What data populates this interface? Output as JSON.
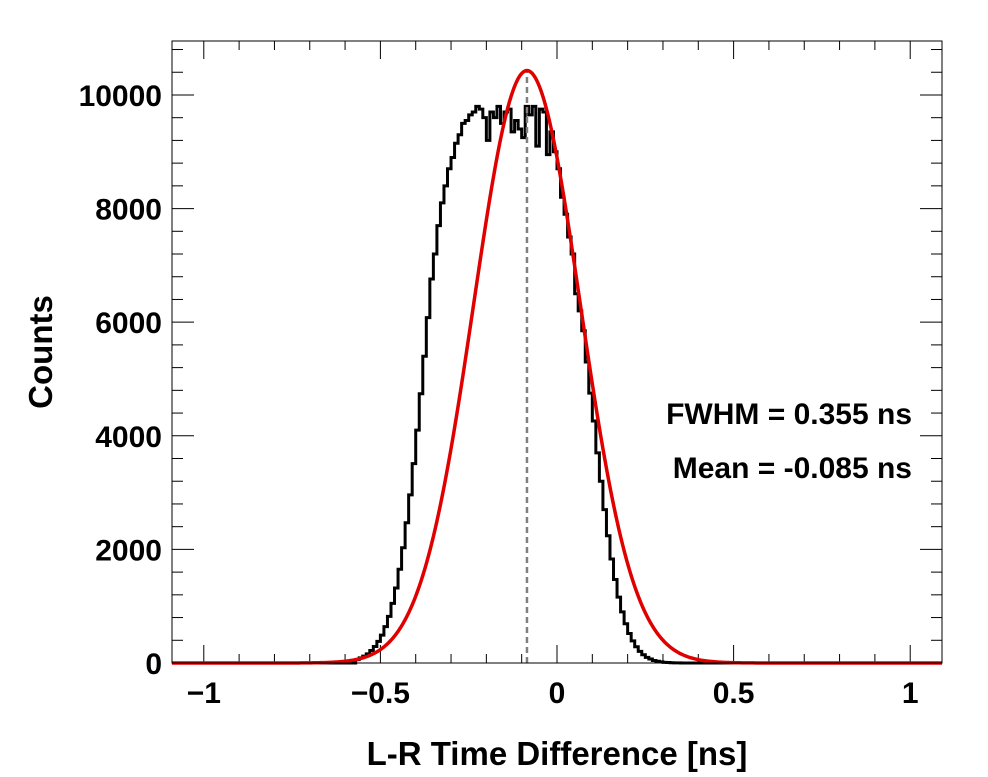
{
  "chart_data": {
    "type": "histogram",
    "xlabel": "L-R Time Difference [ns]",
    "ylabel": "Counts",
    "xlim": [
      -1.09,
      1.09
    ],
    "ylim": [
      0,
      10950
    ],
    "xticks": [
      -1,
      -0.5,
      0,
      0.5,
      1
    ],
    "xtick_labels": [
      "−1",
      "−0.5",
      "0",
      "0.5",
      "1"
    ],
    "yticks": [
      0,
      2000,
      4000,
      6000,
      8000,
      10000
    ],
    "ytick_labels": [
      "0",
      "2000",
      "4000",
      "6000",
      "8000",
      "10000"
    ],
    "histogram": {
      "bin_width": 0.01,
      "bin_centers": [
        -0.565,
        -0.555,
        -0.545,
        -0.535,
        -0.525,
        -0.515,
        -0.505,
        -0.495,
        -0.485,
        -0.475,
        -0.465,
        -0.455,
        -0.445,
        -0.435,
        -0.425,
        -0.415,
        -0.405,
        -0.395,
        -0.385,
        -0.375,
        -0.365,
        -0.355,
        -0.345,
        -0.335,
        -0.325,
        -0.315,
        -0.305,
        -0.295,
        -0.285,
        -0.275,
        -0.265,
        -0.255,
        -0.245,
        -0.235,
        -0.225,
        -0.215,
        -0.205,
        -0.195,
        -0.185,
        -0.175,
        -0.165,
        -0.155,
        -0.145,
        -0.135,
        -0.125,
        -0.115,
        -0.105,
        -0.095,
        -0.085,
        -0.075,
        -0.065,
        -0.055,
        -0.045,
        -0.035,
        -0.025,
        -0.015,
        -0.005,
        0.005,
        0.015,
        0.025,
        0.035,
        0.045,
        0.055,
        0.065,
        0.075,
        0.085,
        0.095,
        0.105,
        0.115,
        0.125,
        0.135,
        0.145,
        0.155,
        0.165,
        0.175,
        0.185,
        0.195,
        0.205,
        0.215,
        0.225,
        0.235,
        0.245,
        0.255,
        0.265,
        0.275,
        0.285,
        0.295,
        0.305,
        0.315,
        0.325,
        0.335,
        0.345,
        0.355,
        0.365,
        0.375,
        0.385,
        0.395
      ],
      "counts": [
        60,
        90,
        120,
        160,
        220,
        290,
        380,
        490,
        640,
        820,
        1050,
        1320,
        1650,
        2030,
        2470,
        2960,
        3510,
        4100,
        4740,
        5400,
        6080,
        6760,
        7200,
        7700,
        8100,
        8400,
        8700,
        8900,
        9150,
        9300,
        9500,
        9550,
        9650,
        9700,
        9800,
        9750,
        9600,
        9200,
        9700,
        9600,
        9800,
        9500,
        9700,
        9750,
        9350,
        9550,
        9400,
        9250,
        9800,
        9650,
        9800,
        9100,
        9750,
        9700,
        8950,
        9350,
        9000,
        8700,
        8200,
        7900,
        7500,
        7200,
        6500,
        6200,
        5850,
        5300,
        4750,
        4260,
        3700,
        3200,
        2700,
        2240,
        1830,
        1470,
        1160,
        900,
        690,
        520,
        390,
        285,
        205,
        145,
        100,
        70,
        45,
        30,
        20,
        12,
        8,
        5,
        3,
        2,
        1,
        1,
        0,
        0,
        0
      ],
      "stroke_color": "#000000"
    },
    "fit": {
      "type": "gaussian",
      "amplitude": 10430,
      "mean": -0.085,
      "sigma": 0.1508,
      "stroke_color": "#e00000"
    },
    "mean_line": {
      "x": -0.085,
      "stroke_color": "#808080",
      "style": "dashed"
    },
    "annotations": [
      "FWHM = 0.355 ns",
      "Mean = -0.085 ns"
    ],
    "grid": false,
    "legend": "none"
  }
}
